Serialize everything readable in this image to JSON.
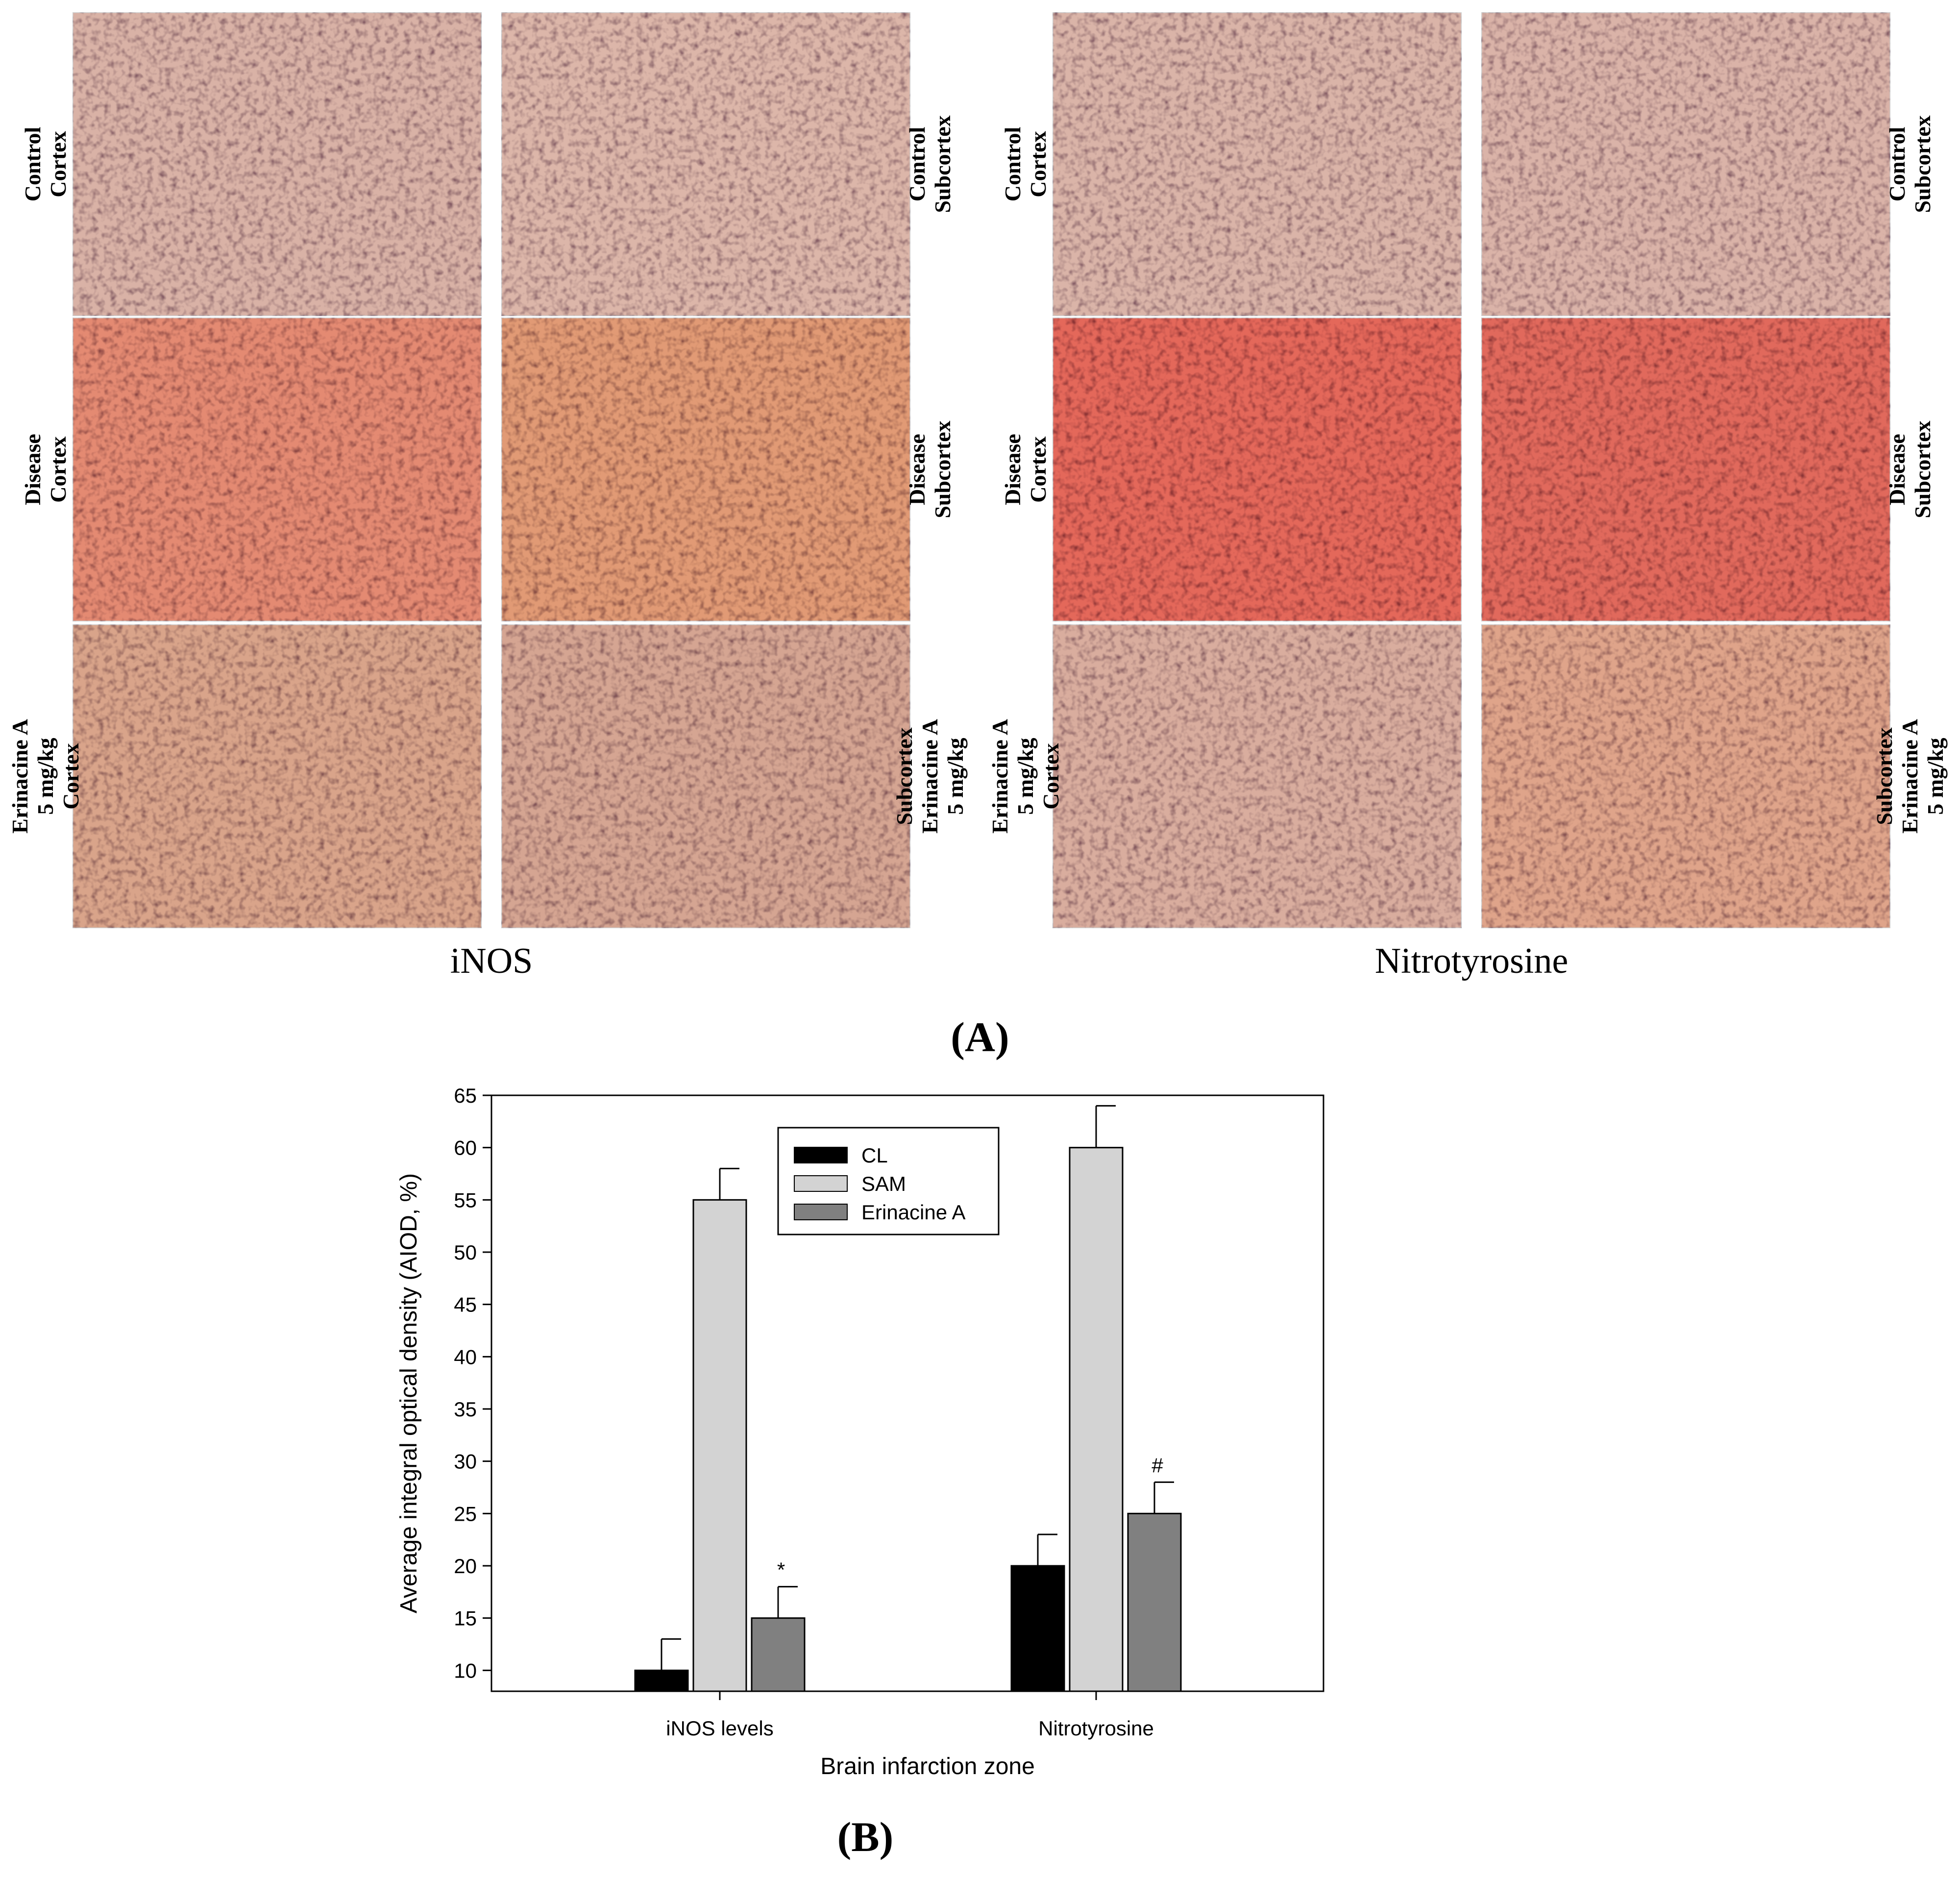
{
  "panel_a": {
    "caption": "(A)",
    "groups": [
      {
        "title": "iNOS",
        "left_labels": [
          [
            "Control",
            "Cortex"
          ],
          [
            "Disease",
            "Cortex"
          ],
          [
            "Erinacine A",
            "5 mg/kg",
            "Cortex"
          ]
        ],
        "right_labels": [
          [
            "Control",
            "Subcortex"
          ],
          [
            "Disease",
            "Subcortex"
          ],
          [
            "Subcortex",
            "Erinacine A",
            "5 mg/kg"
          ]
        ],
        "tiles": [
          [
            "#d9b2a6",
            "#dcb6a9"
          ],
          [
            "#e48a72",
            "#e19a74"
          ],
          [
            "#d9a48a",
            "#d5a592"
          ]
        ]
      },
      {
        "title": "Nitrotyrosine",
        "left_labels": [
          [
            "Control",
            "Cortex"
          ],
          [
            "Disease",
            "Cortex"
          ],
          [
            "Erinacine A",
            "5 mg/kg",
            "Cortex"
          ]
        ],
        "right_labels": [
          [
            "Control",
            "Subcortex"
          ],
          [
            "Disease",
            "Subcortex"
          ],
          [
            "Subcortex",
            "Erinacine A",
            "5 mg/kg"
          ]
        ],
        "tiles": [
          [
            "#dab4a8",
            "#dab3a8"
          ],
          [
            "#e4675a",
            "#e1695c"
          ],
          [
            "#d9ad9e",
            "#dfa48a"
          ]
        ]
      }
    ]
  },
  "panel_b": {
    "caption": "(B)",
    "chart_data": {
      "type": "bar",
      "categories": [
        "iNOS levels",
        "Nitrotyrosine"
      ],
      "series": [
        {
          "name": "CL",
          "values": [
            10,
            20
          ],
          "errors": [
            3,
            3
          ],
          "color": "#000000"
        },
        {
          "name": "SAM",
          "values": [
            55,
            60
          ],
          "errors": [
            3,
            4
          ],
          "color": "#d3d3d3"
        },
        {
          "name": "Erinacine A",
          "values": [
            15,
            25
          ],
          "errors": [
            3,
            3
          ],
          "color": "#808080"
        }
      ],
      "annotations": [
        {
          "category": "iNOS levels",
          "series": "Erinacine A",
          "text": "*"
        },
        {
          "category": "Nitrotyrosine",
          "series": "Erinacine A",
          "text": "#"
        }
      ],
      "xlabel": "Brain infarction zone",
      "ylabel": "Average integral optical density (AIOD, %)",
      "ylim": [
        8,
        65
      ],
      "yticks": [
        10,
        15,
        20,
        25,
        30,
        35,
        40,
        45,
        50,
        55,
        60,
        65
      ],
      "grid": false,
      "legend_position": "top-center"
    }
  }
}
